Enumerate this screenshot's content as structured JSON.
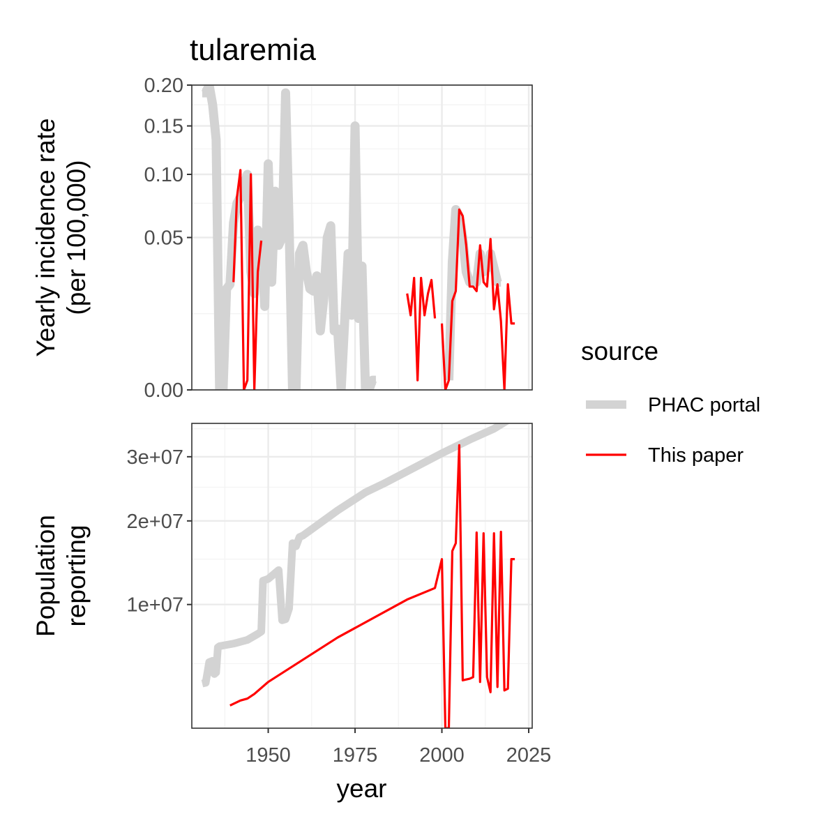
{
  "chart_data": {
    "type": "line",
    "title": "tularemia",
    "xlabel": "year",
    "x_ticks": [
      1950,
      1975,
      2000,
      2025
    ],
    "xlim": [
      1928,
      2026
    ],
    "legend": {
      "title": "source",
      "position": "right",
      "entries": [
        {
          "label": "PHAC portal",
          "color": "#d3d3d3"
        },
        {
          "label": "This paper",
          "color": "#ff0000"
        }
      ]
    },
    "panels": [
      {
        "id": "incidence",
        "ylabel_line1": "Yearly incidence rate",
        "ylabel_line2": "(per 100,000)",
        "scale": "sqrt",
        "ylim": [
          0,
          0.2
        ],
        "y_ticks": [
          {
            "value": 0,
            "label": "0.00"
          },
          {
            "value": 0.05,
            "label": "0.05"
          },
          {
            "value": 0.1,
            "label": "0.10"
          },
          {
            "value": 0.15,
            "label": "0.15"
          },
          {
            "value": 0.2,
            "label": "0.20"
          }
        ],
        "y_minor": [
          0.0125,
          0.075,
          0.125,
          0.175
        ],
        "series": [
          {
            "name": "PHAC portal",
            "color": "#d3d3d3",
            "width": 13,
            "segments": [
              [
                [
                  1931,
                  0.19
                ],
                [
                  1932,
                  0.19
                ],
                [
                  1933,
                  0.2
                ],
                [
                  1934,
                  0.175
                ],
                [
                  1935,
                  0.135
                ],
                [
                  1936,
                  0
                ],
                [
                  1937,
                  0
                ],
                [
                  1938,
                  0.022
                ],
                [
                  1939,
                  0.024
                ],
                [
                  1940,
                  0.06
                ],
                [
                  1941,
                  0.075
                ],
                [
                  1942,
                  0.08
                ],
                [
                  1943,
                  0.09
                ],
                [
                  1944,
                  0.1
                ],
                [
                  1945,
                  0.03
                ],
                [
                  1946,
                  0.02
                ],
                [
                  1947,
                  0.055
                ],
                [
                  1948,
                  0.05
                ],
                [
                  1949,
                  0.015
                ],
                [
                  1950,
                  0.11
                ],
                [
                  1951,
                  0.025
                ],
                [
                  1952,
                  0.085
                ],
                [
                  1953,
                  0.045
                ],
                [
                  1954,
                  0.05
                ],
                [
                  1955,
                  0.19
                ],
                [
                  1956,
                  0.06
                ],
                [
                  1957,
                  0
                ],
                [
                  1958,
                  0
                ],
                [
                  1959,
                  0.04
                ],
                [
                  1960,
                  0.045
                ],
                [
                  1961,
                  0.03
                ],
                [
                  1962,
                  0.022
                ],
                [
                  1963,
                  0.021
                ],
                [
                  1964,
                  0.028
                ],
                [
                  1965,
                  0.0075
                ],
                [
                  1966,
                  0.018
                ],
                [
                  1967,
                  0.05
                ],
                [
                  1968,
                  0.058
                ],
                [
                  1969,
                  0.0075
                ],
                [
                  1970,
                  0.008
                ],
                [
                  1971,
                  0
                ],
                [
                  1972,
                  0.01
                ],
                [
                  1973,
                  0.04
                ],
                [
                  1974,
                  0.012
                ],
                [
                  1975,
                  0.15
                ],
                [
                  1976,
                  0.011
                ],
                [
                  1977,
                  0.033
                ],
                [
                  1978,
                  0
                ],
                [
                  1979,
                  0
                ],
                [
                  1980,
                  0.0002
                ],
                [
                  1981,
                  0.0002
                ]
              ],
              [
                [
                  2002,
                  0.0002
                ],
                [
                  2003,
                  0.035
                ],
                [
                  2004,
                  0.07
                ],
                [
                  2005,
                  0.065
                ],
                [
                  2006,
                  0.05
                ],
                [
                  2007,
                  0.03
                ],
                [
                  2008,
                  0.025
                ],
                [
                  2009,
                  0.025
                ],
                [
                  2010,
                  0.025
                ],
                [
                  2011,
                  0.04
                ],
                [
                  2012,
                  0.03
                ],
                [
                  2013,
                  0.032
                ],
                [
                  2014,
                  0.04
                ],
                [
                  2015,
                  0.032
                ],
                [
                  2016,
                  0.025
                ],
                [
                  2017,
                  0.025
                ]
              ]
            ]
          },
          {
            "name": "This paper",
            "color": "#ff0000",
            "width": 3.2,
            "segments": [
              [
                [
                  1940,
                  0.025
                ],
                [
                  1941,
                  0.08
                ],
                [
                  1942,
                  0.104
                ],
                [
                  1943,
                  0
                ],
                [
                  1944,
                  0.0002
                ],
                [
                  1945,
                  0.1
                ],
                [
                  1946,
                  0
                ],
                [
                  1947,
                  0.03
                ],
                [
                  1948,
                  0.048
                ]
              ],
              [
                [
                  1990,
                  0.02
                ],
                [
                  1991,
                  0.012
                ],
                [
                  1992,
                  0.027
                ],
                [
                  1993,
                  0.0002
                ],
                [
                  1994,
                  0.027
                ],
                [
                  1995,
                  0.012
                ],
                [
                  1996,
                  0.02
                ],
                [
                  1997,
                  0.026
                ],
                [
                  1998,
                  0.011
                ]
              ],
              [
                [
                  2000,
                  0.0095
                ],
                [
                  2001,
                  0
                ],
                [
                  2002,
                  0.0002
                ],
                [
                  2003,
                  0.017
                ],
                [
                  2004,
                  0.021
                ],
                [
                  2005,
                  0.07
                ],
                [
                  2006,
                  0.065
                ],
                [
                  2007,
                  0.045
                ],
                [
                  2008,
                  0.023
                ],
                [
                  2009,
                  0.023
                ],
                [
                  2010,
                  0.021
                ],
                [
                  2011,
                  0.045
                ],
                [
                  2012,
                  0.025
                ],
                [
                  2013,
                  0.023
                ],
                [
                  2014,
                  0.049
                ],
                [
                  2015,
                  0.014
                ],
                [
                  2016,
                  0.024
                ],
                [
                  2017,
                  0.0102
                ],
                [
                  2018,
                  0
                ],
                [
                  2019,
                  0.024
                ],
                [
                  2020,
                  0.0095
                ],
                [
                  2021,
                  0.0095
                ]
              ]
            ]
          }
        ]
      },
      {
        "id": "population",
        "ylabel_line1": "Population",
        "ylabel_line2": "reporting",
        "scale": "sqrt",
        "ylim": [
          1500000,
          36000000
        ],
        "y_ticks": [
          {
            "value": 10000000,
            "label": "1e+07"
          },
          {
            "value": 20000000,
            "label": "2e+07"
          },
          {
            "value": 30000000,
            "label": "3e+07"
          }
        ],
        "y_minor": [
          5000000,
          15000000,
          25000000,
          35000000
        ],
        "series": [
          {
            "name": "PHAC portal",
            "color": "#d3d3d3",
            "width": 11,
            "segments": [
              [
                [
                  1931,
                  3700000
                ],
                [
                  1932,
                  3750000
                ],
                [
                  1933,
                  5100000
                ],
                [
                  1934,
                  5200000
                ],
                [
                  1934.5,
                  4300000
                ],
                [
                  1935,
                  4400000
                ],
                [
                  1935.5,
                  6200000
                ],
                [
                  1936,
                  6300000
                ],
                [
                  1940,
                  6500000
                ],
                [
                  1944,
                  6800000
                ],
                [
                  1947,
                  7300000
                ],
                [
                  1948,
                  7500000
                ],
                [
                  1948.5,
                  12500000
                ],
                [
                  1950,
                  12700000
                ],
                [
                  1953,
                  13700000
                ],
                [
                  1954,
                  8500000
                ],
                [
                  1955,
                  8600000
                ],
                [
                  1956,
                  9600000
                ],
                [
                  1957,
                  17000000
                ],
                [
                  1958,
                  16600000
                ],
                [
                  1959,
                  17800000
                ],
                [
                  1960,
                  18000000
                ],
                [
                  1970,
                  21500000
                ],
                [
                  1978,
                  24200000
                ],
                [
                  1983,
                  25500000
                ],
                [
                  2000,
                  30600000
                ],
                [
                  2008,
                  33000000
                ],
                [
                  2015,
                  35000000
                ],
                [
                  2020,
                  37000000
                ]
              ]
            ]
          },
          {
            "name": "This paper",
            "color": "#ff0000",
            "width": 3.2,
            "segments": [
              [
                [
                  1939,
                  2500000
                ],
                [
                  1942,
                  2750000
                ],
                [
                  1944,
                  2850000
                ],
                [
                  1946,
                  3100000
                ],
                [
                  1950,
                  3800000
                ],
                [
                  1970,
                  7000000
                ],
                [
                  1990,
                  10500000
                ],
                [
                  1998,
                  11700000
                ],
                [
                  2000,
                  15000000
                ],
                [
                  2001,
                  1500000
                ],
                [
                  2002,
                  1500000
                ],
                [
                  2003,
                  16000000
                ],
                [
                  2004,
                  17000000
                ],
                [
                  2005,
                  32000000
                ],
                [
                  2006,
                  3900000
                ],
                [
                  2008,
                  4000000
                ],
                [
                  2009,
                  4100000
                ],
                [
                  2010,
                  18400000
                ],
                [
                  2011,
                  3800000
                ],
                [
                  2012,
                  18300000
                ],
                [
                  2013,
                  4100000
                ],
                [
                  2014,
                  3200000
                ],
                [
                  2015,
                  18300000
                ],
                [
                  2016,
                  3500000
                ],
                [
                  2017,
                  18500000
                ],
                [
                  2018,
                  3300000
                ],
                [
                  2019,
                  3400000
                ],
                [
                  2020,
                  15000000
                ],
                [
                  2021,
                  15000000
                ]
              ]
            ]
          }
        ]
      }
    ]
  }
}
